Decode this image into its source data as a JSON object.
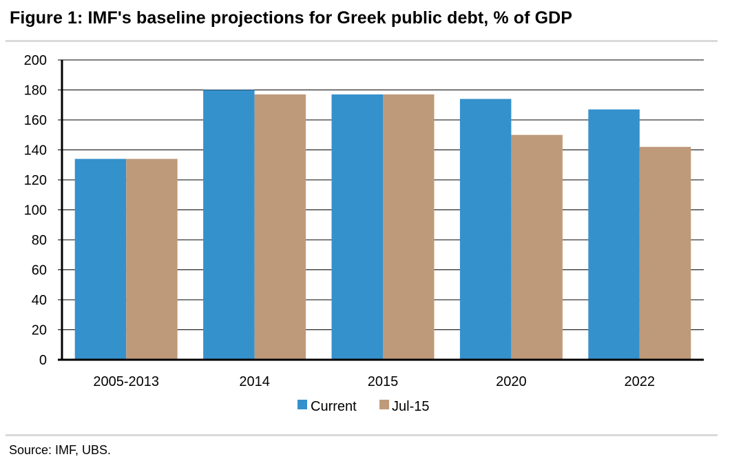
{
  "title": "Figure 1: IMF's baseline projections for Greek public debt, % of GDP",
  "source": "Source:  IMF, UBS.",
  "colors": {
    "current": "#3591cc",
    "jul15": "#bf9a7a",
    "grid": "#000000",
    "rule": "#d9d9d9"
  },
  "chart_data": {
    "type": "bar",
    "title": "Figure 1: IMF's baseline projections for Greek public debt, % of GDP",
    "xlabel": "",
    "ylabel": "",
    "categories": [
      "2005-2013",
      "2014",
      "2015",
      "2020",
      "2022"
    ],
    "series": [
      {
        "name": "Current",
        "values": [
          134,
          180,
          177,
          174,
          167
        ]
      },
      {
        "name": "Jul-15",
        "values": [
          134,
          177,
          177,
          150,
          142
        ]
      }
    ],
    "ylim": [
      0,
      200
    ],
    "yticks": [
      "0",
      "20",
      "40",
      "60",
      "80",
      "100",
      "120",
      "140",
      "160",
      "180",
      "200"
    ],
    "grid": true,
    "legend": "bottom-center"
  }
}
